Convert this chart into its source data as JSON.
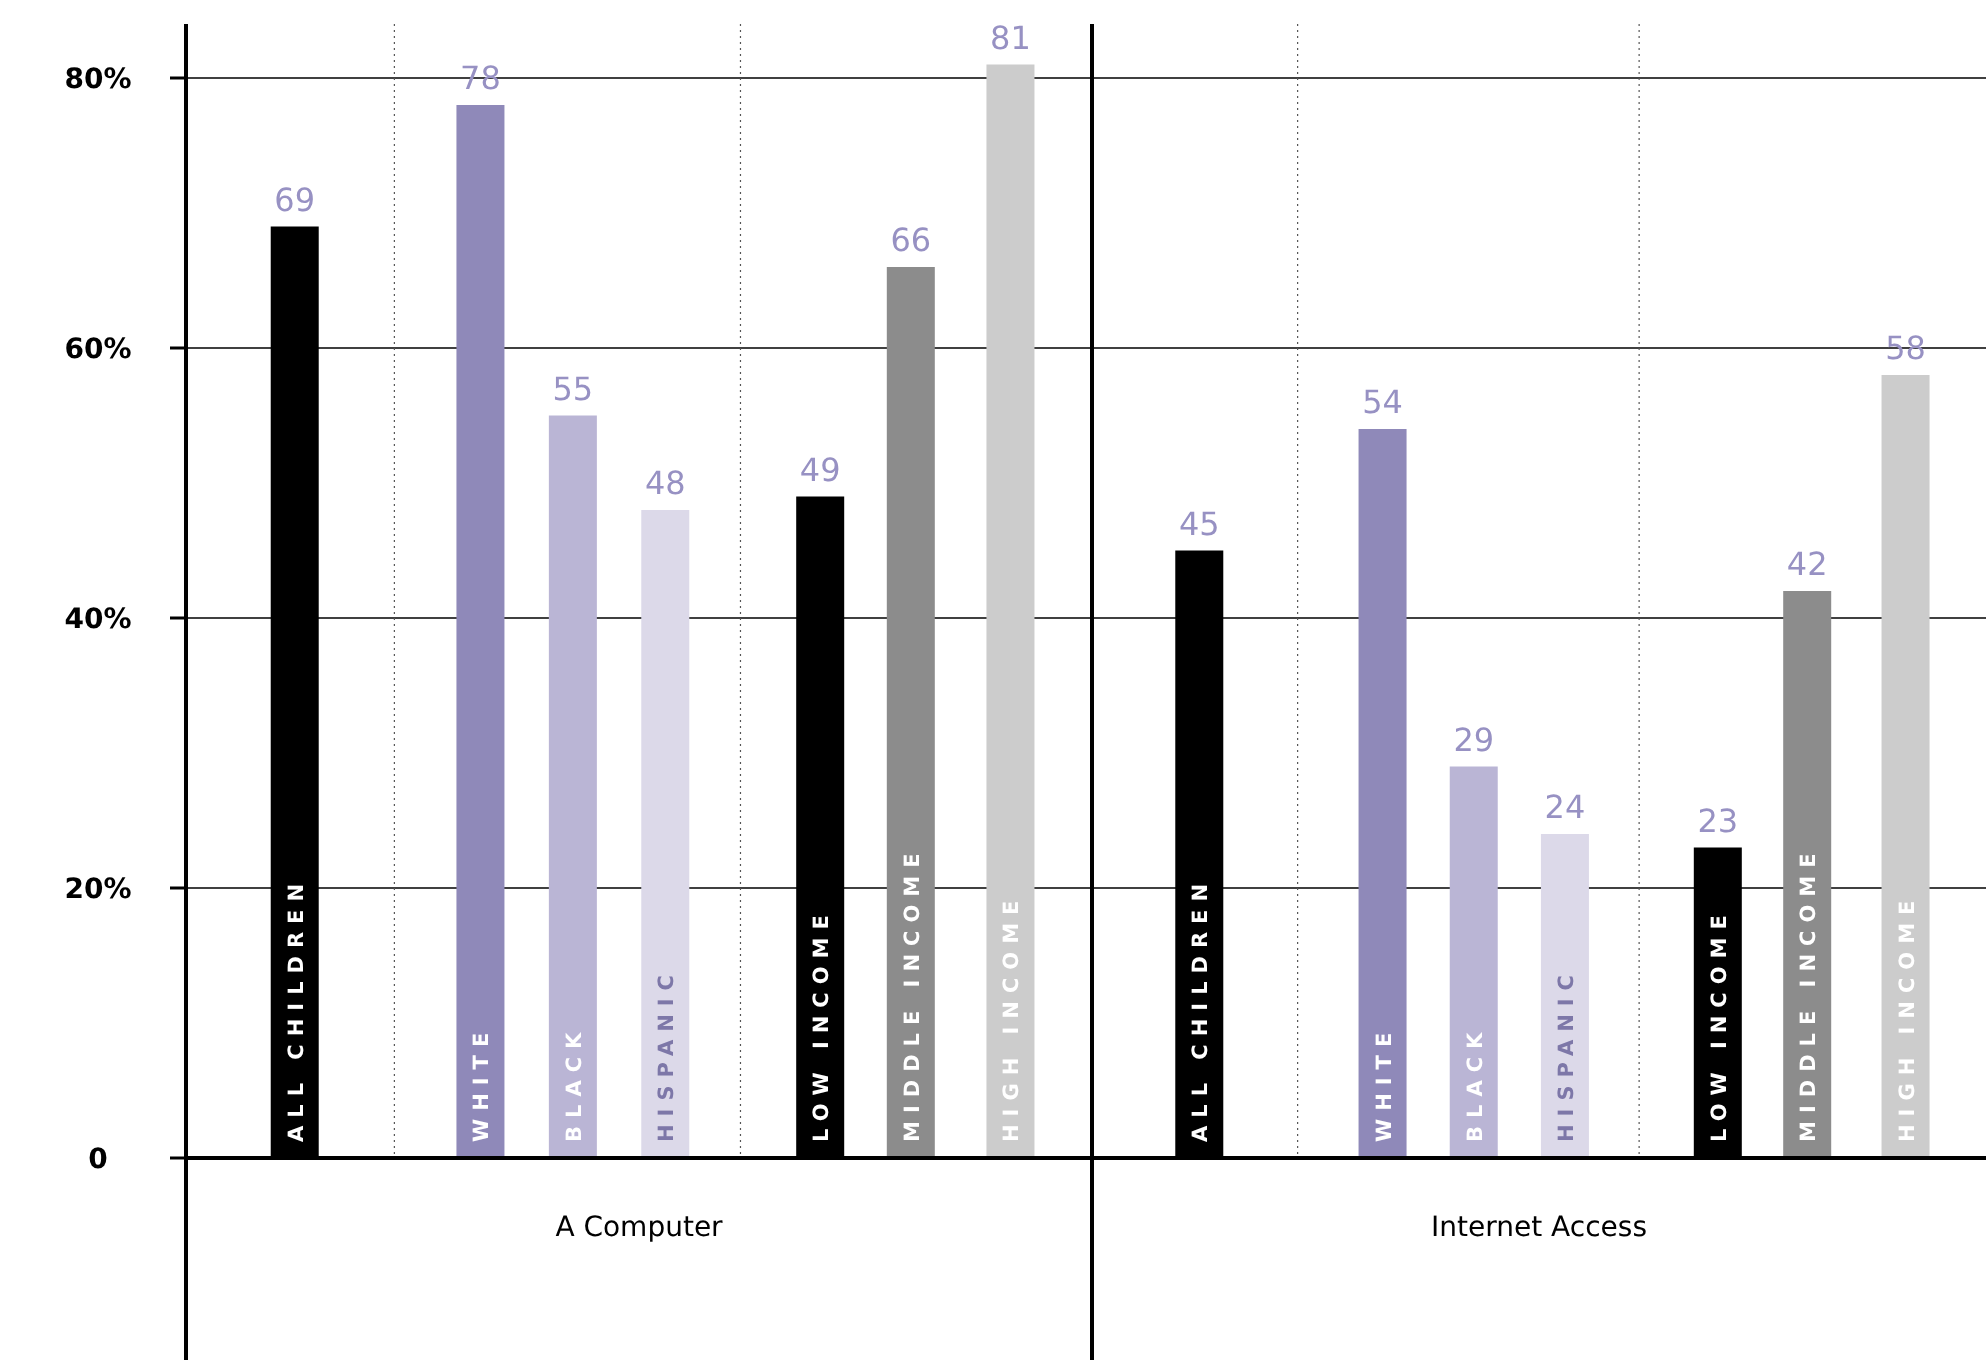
{
  "chart_data": [
    {
      "type": "bar",
      "xlabel": "A Computer",
      "categories": [
        "ALL CHILDREN",
        "WHITE",
        "BLACK",
        "HISPANIC",
        "LOW INCOME",
        "MIDDLE INCOME",
        "HIGH INCOME"
      ],
      "values": [
        69,
        78,
        55,
        48,
        49,
        66,
        81
      ],
      "colors": [
        "#000000",
        "#8f89b9",
        "#bab5d5",
        "#dcd9e9",
        "#000000",
        "#8c8c8c",
        "#cccccc"
      ],
      "ylim": [
        0,
        84
      ],
      "yticks": [
        0,
        {
          "value": 20,
          "label": "20%"
        },
        {
          "value": 40,
          "label": "40%"
        },
        {
          "value": 60,
          "label": "60%"
        },
        {
          "value": 80,
          "label": "80%"
        }
      ],
      "grid": "y",
      "data_labels": true
    },
    {
      "type": "bar",
      "xlabel": "Internet Access",
      "categories": [
        "ALL CHILDREN",
        "WHITE",
        "BLACK",
        "HISPANIC",
        "LOW INCOME",
        "MIDDLE INCOME",
        "HIGH INCOME"
      ],
      "values": [
        45,
        54,
        29,
        24,
        23,
        42,
        58
      ],
      "colors": [
        "#000000",
        "#8f89b9",
        "#bab5d5",
        "#dcd9e9",
        "#000000",
        "#8c8c8c",
        "#cccccc"
      ],
      "ylim": [
        0,
        84
      ],
      "yticks": [
        0,
        20,
        40,
        60,
        80
      ],
      "grid": "y",
      "data_labels": true,
      "tick_labels": "x"
    }
  ]
}
